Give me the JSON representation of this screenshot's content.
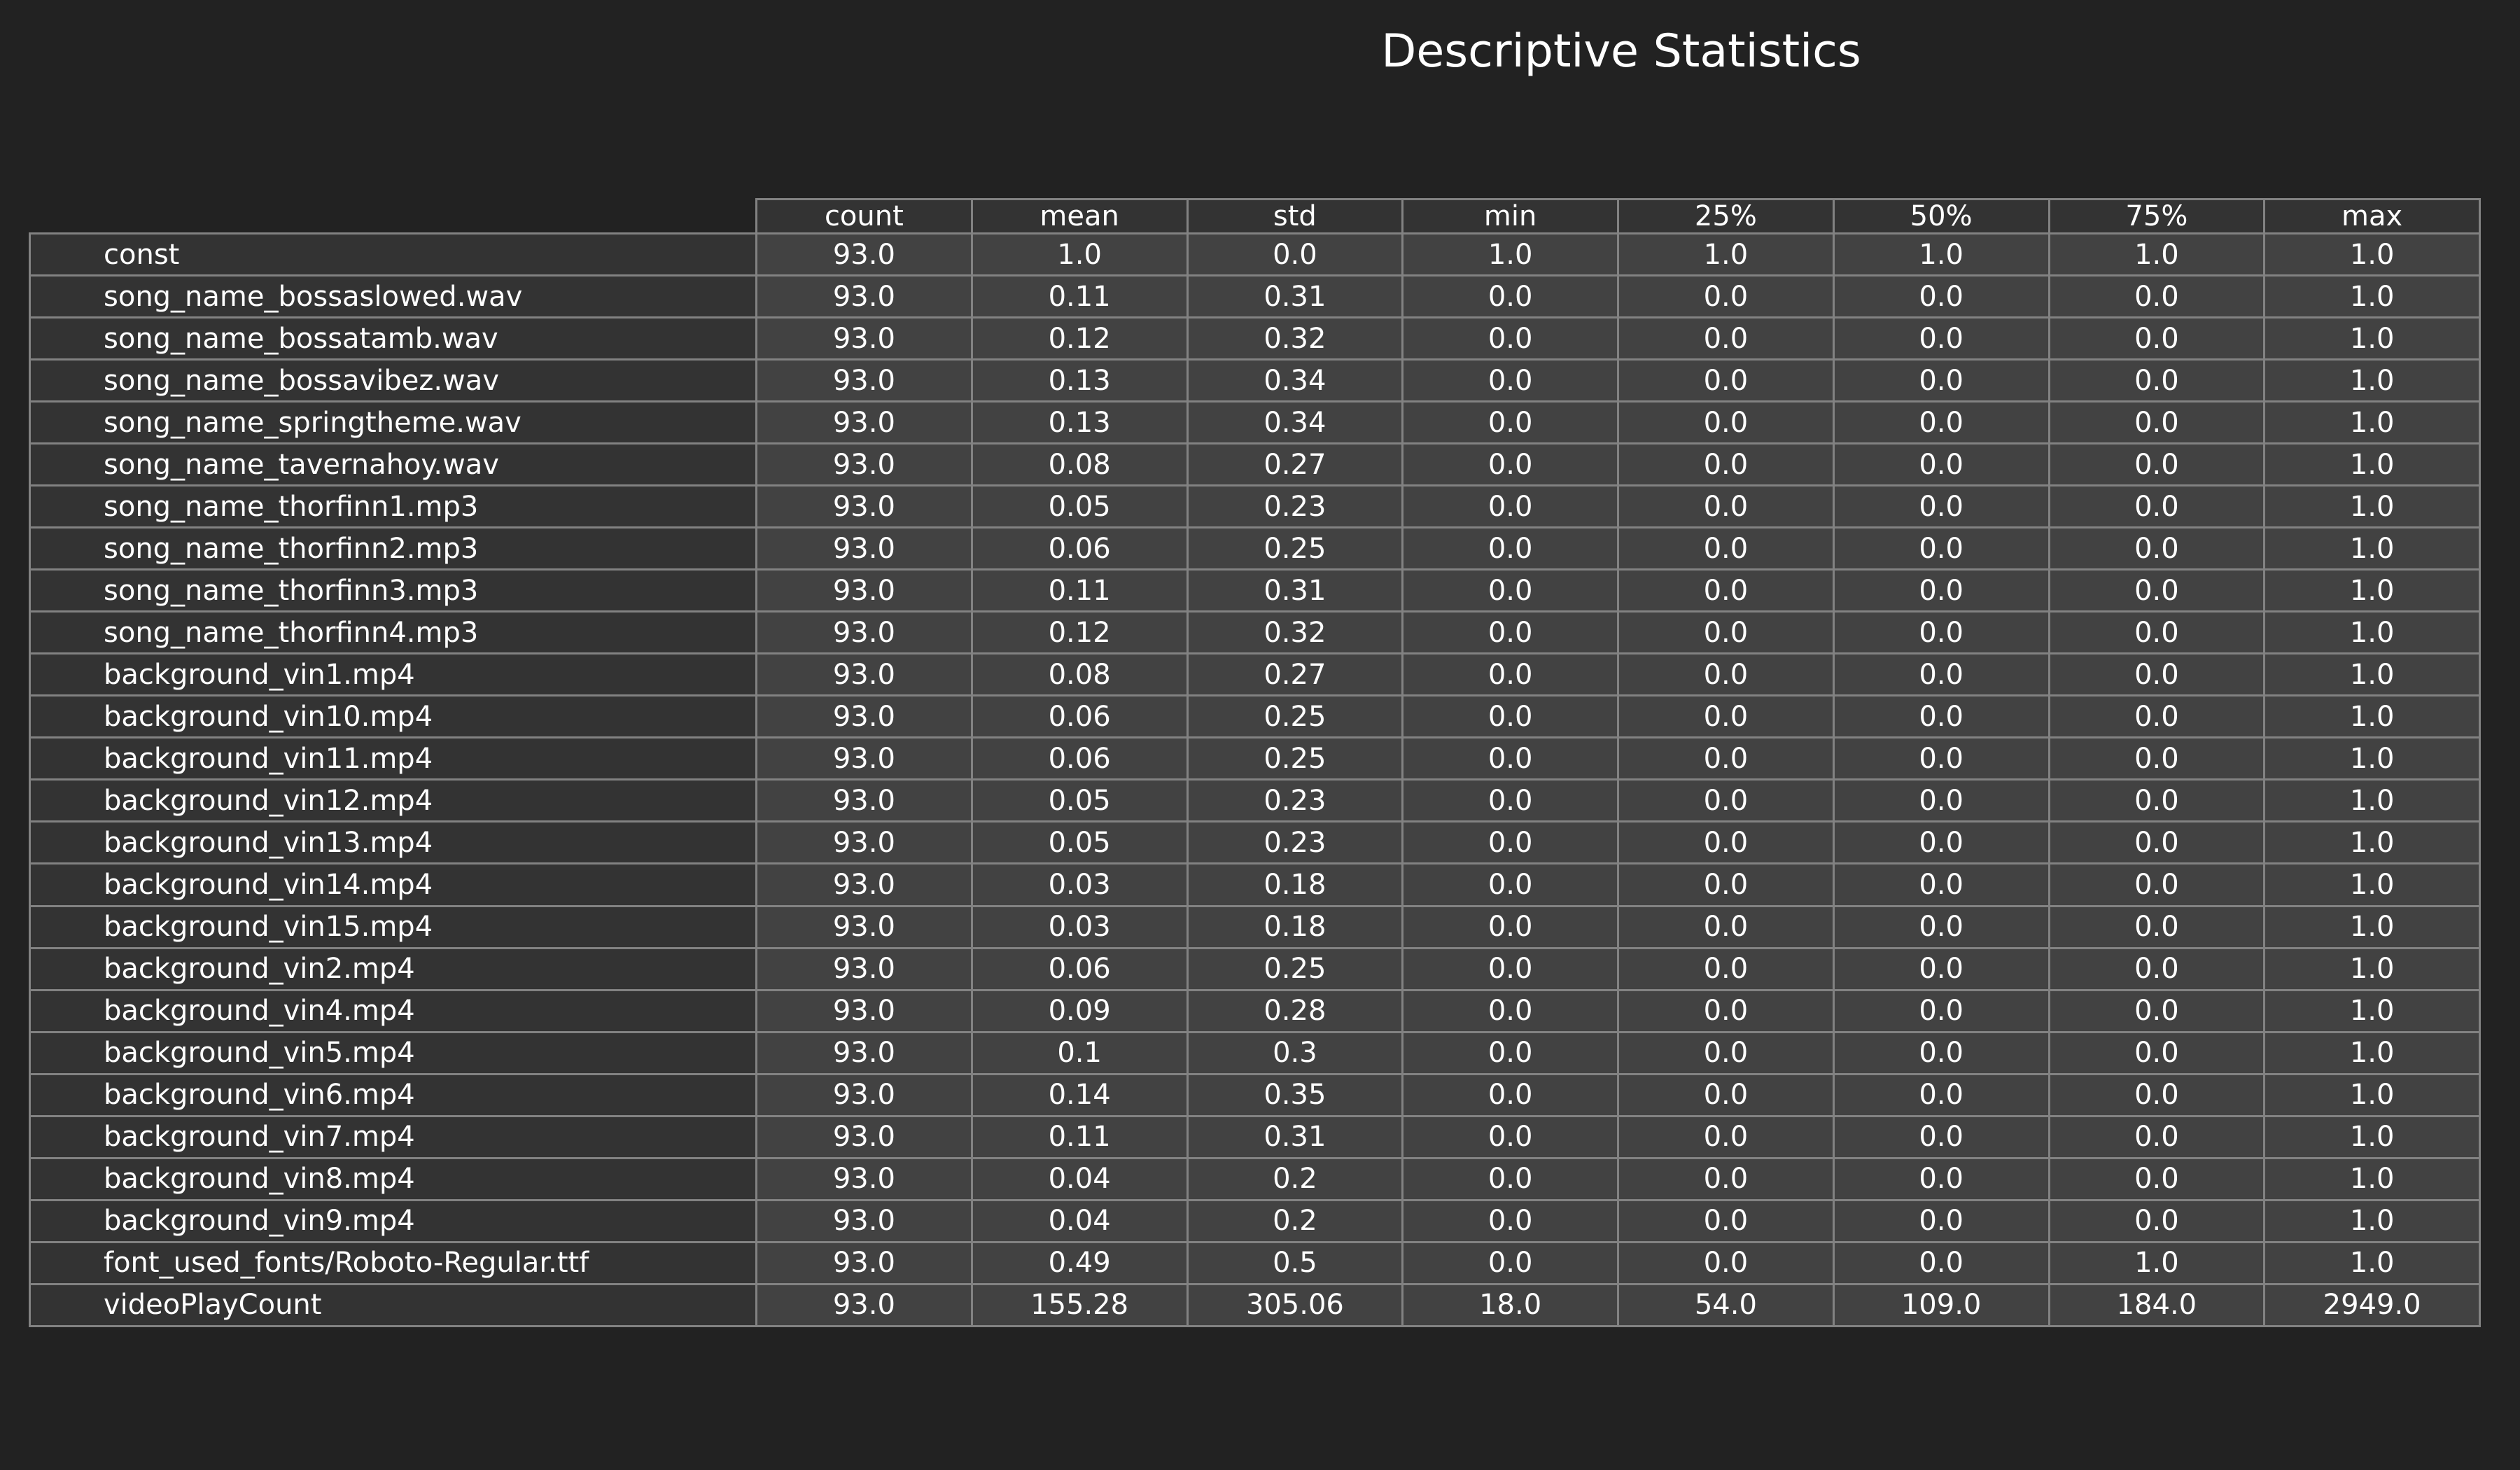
{
  "chart_data": {
    "type": "table",
    "title": "Descriptive Statistics",
    "columns": [
      "count",
      "mean",
      "std",
      "min",
      "25%",
      "50%",
      "75%",
      "max"
    ],
    "rows": [
      {
        "label": "const",
        "values": [
          "93.0",
          "1.0",
          "0.0",
          "1.0",
          "1.0",
          "1.0",
          "1.0",
          "1.0"
        ]
      },
      {
        "label": "song_name_bossaslowed.wav",
        "values": [
          "93.0",
          "0.11",
          "0.31",
          "0.0",
          "0.0",
          "0.0",
          "0.0",
          "1.0"
        ]
      },
      {
        "label": "song_name_bossatamb.wav",
        "values": [
          "93.0",
          "0.12",
          "0.32",
          "0.0",
          "0.0",
          "0.0",
          "0.0",
          "1.0"
        ]
      },
      {
        "label": "song_name_bossavibez.wav",
        "values": [
          "93.0",
          "0.13",
          "0.34",
          "0.0",
          "0.0",
          "0.0",
          "0.0",
          "1.0"
        ]
      },
      {
        "label": "song_name_springtheme.wav",
        "values": [
          "93.0",
          "0.13",
          "0.34",
          "0.0",
          "0.0",
          "0.0",
          "0.0",
          "1.0"
        ]
      },
      {
        "label": "song_name_tavernahoy.wav",
        "values": [
          "93.0",
          "0.08",
          "0.27",
          "0.0",
          "0.0",
          "0.0",
          "0.0",
          "1.0"
        ]
      },
      {
        "label": "song_name_thorfinn1.mp3",
        "values": [
          "93.0",
          "0.05",
          "0.23",
          "0.0",
          "0.0",
          "0.0",
          "0.0",
          "1.0"
        ]
      },
      {
        "label": "song_name_thorfinn2.mp3",
        "values": [
          "93.0",
          "0.06",
          "0.25",
          "0.0",
          "0.0",
          "0.0",
          "0.0",
          "1.0"
        ]
      },
      {
        "label": "song_name_thorfinn3.mp3",
        "values": [
          "93.0",
          "0.11",
          "0.31",
          "0.0",
          "0.0",
          "0.0",
          "0.0",
          "1.0"
        ]
      },
      {
        "label": "song_name_thorfinn4.mp3",
        "values": [
          "93.0",
          "0.12",
          "0.32",
          "0.0",
          "0.0",
          "0.0",
          "0.0",
          "1.0"
        ]
      },
      {
        "label": "background_vin1.mp4",
        "values": [
          "93.0",
          "0.08",
          "0.27",
          "0.0",
          "0.0",
          "0.0",
          "0.0",
          "1.0"
        ]
      },
      {
        "label": "background_vin10.mp4",
        "values": [
          "93.0",
          "0.06",
          "0.25",
          "0.0",
          "0.0",
          "0.0",
          "0.0",
          "1.0"
        ]
      },
      {
        "label": "background_vin11.mp4",
        "values": [
          "93.0",
          "0.06",
          "0.25",
          "0.0",
          "0.0",
          "0.0",
          "0.0",
          "1.0"
        ]
      },
      {
        "label": "background_vin12.mp4",
        "values": [
          "93.0",
          "0.05",
          "0.23",
          "0.0",
          "0.0",
          "0.0",
          "0.0",
          "1.0"
        ]
      },
      {
        "label": "background_vin13.mp4",
        "values": [
          "93.0",
          "0.05",
          "0.23",
          "0.0",
          "0.0",
          "0.0",
          "0.0",
          "1.0"
        ]
      },
      {
        "label": "background_vin14.mp4",
        "values": [
          "93.0",
          "0.03",
          "0.18",
          "0.0",
          "0.0",
          "0.0",
          "0.0",
          "1.0"
        ]
      },
      {
        "label": "background_vin15.mp4",
        "values": [
          "93.0",
          "0.03",
          "0.18",
          "0.0",
          "0.0",
          "0.0",
          "0.0",
          "1.0"
        ]
      },
      {
        "label": "background_vin2.mp4",
        "values": [
          "93.0",
          "0.06",
          "0.25",
          "0.0",
          "0.0",
          "0.0",
          "0.0",
          "1.0"
        ]
      },
      {
        "label": "background_vin4.mp4",
        "values": [
          "93.0",
          "0.09",
          "0.28",
          "0.0",
          "0.0",
          "0.0",
          "0.0",
          "1.0"
        ]
      },
      {
        "label": "background_vin5.mp4",
        "values": [
          "93.0",
          "0.1",
          "0.3",
          "0.0",
          "0.0",
          "0.0",
          "0.0",
          "1.0"
        ]
      },
      {
        "label": "background_vin6.mp4",
        "values": [
          "93.0",
          "0.14",
          "0.35",
          "0.0",
          "0.0",
          "0.0",
          "0.0",
          "1.0"
        ]
      },
      {
        "label": "background_vin7.mp4",
        "values": [
          "93.0",
          "0.11",
          "0.31",
          "0.0",
          "0.0",
          "0.0",
          "0.0",
          "1.0"
        ]
      },
      {
        "label": "background_vin8.mp4",
        "values": [
          "93.0",
          "0.04",
          "0.2",
          "0.0",
          "0.0",
          "0.0",
          "0.0",
          "1.0"
        ]
      },
      {
        "label": "background_vin9.mp4",
        "values": [
          "93.0",
          "0.04",
          "0.2",
          "0.0",
          "0.0",
          "0.0",
          "0.0",
          "1.0"
        ]
      },
      {
        "label": "font_used_fonts/Roboto-Regular.ttf",
        "values": [
          "93.0",
          "0.49",
          "0.5",
          "0.0",
          "0.0",
          "0.0",
          "1.0",
          "1.0"
        ]
      },
      {
        "label": "videoPlayCount",
        "values": [
          "93.0",
          "155.28",
          "305.06",
          "18.0",
          "54.0",
          "109.0",
          "184.0",
          "2949.0"
        ]
      }
    ],
    "layout": {
      "legend": "none",
      "grid": "cell-borders",
      "header_position": "top",
      "row_labels_position": "left"
    }
  },
  "style": {
    "page_background": "#222222",
    "header_cell_background": "#333333",
    "row_label_background": "#333333",
    "data_cell_background": "#424242",
    "border_color": "#828282",
    "text_color": "#ffffff"
  }
}
